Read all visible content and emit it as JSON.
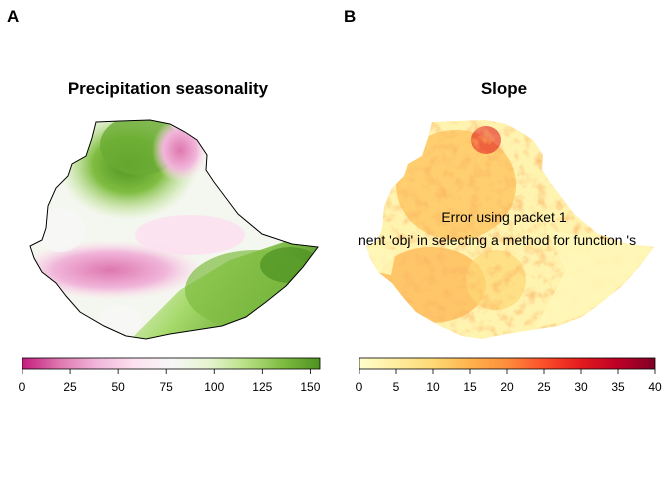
{
  "panels": [
    {
      "letter": "A",
      "title": "Precipitation seasonality",
      "legend": {
        "ticks": [
          "0",
          "25",
          "50",
          "75",
          "100",
          "125",
          "150"
        ],
        "min": 0,
        "max": 155,
        "colors": [
          "#c51b7d",
          "#de77ae",
          "#f1b6da",
          "#fde0ef",
          "#f7f7f7",
          "#e6f5d0",
          "#b8e186",
          "#7fbc41",
          "#4d9221"
        ]
      }
    },
    {
      "letter": "B",
      "title": "Slope",
      "legend": {
        "ticks": [
          "0",
          "5",
          "10",
          "15",
          "20",
          "25",
          "30",
          "35",
          "40"
        ],
        "min": 0,
        "max": 40,
        "colors": [
          "#ffffcc",
          "#ffeda0",
          "#fed976",
          "#feb24c",
          "#fd8d3c",
          "#fc4e2a",
          "#e31a1c",
          "#bd0026",
          "#800026"
        ]
      },
      "error_line1": "Error using packet 1",
      "error_line2": "nent 'obj' in selecting a method for function 's"
    }
  ]
}
